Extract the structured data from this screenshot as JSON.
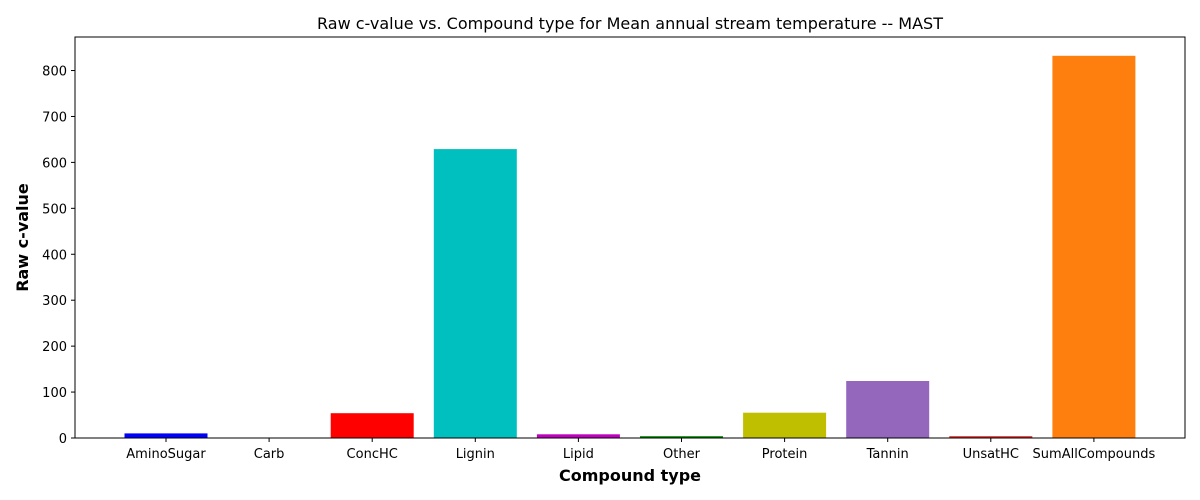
{
  "chart_data": {
    "type": "bar",
    "title": "Raw c-value vs. Compound type for Mean annual stream temperature -- MAST",
    "xlabel": "Compound type",
    "ylabel": "Raw c-value",
    "categories": [
      "AminoSugar",
      "Carb",
      "ConcHC",
      "Lignin",
      "Lipid",
      "Other",
      "Protein",
      "Tannin",
      "UnsatHC",
      "SumAllCompounds"
    ],
    "values": [
      10,
      0,
      54,
      629,
      8,
      4,
      55,
      124,
      4,
      832
    ],
    "colors": [
      "#0000ff",
      "#0000ff",
      "#ff0000",
      "#00bfbf",
      "#bf00bf",
      "#008000",
      "#bfbf00",
      "#9467bd",
      "#d62728",
      "#ff7f0e"
    ],
    "yticks": [
      0,
      100,
      200,
      300,
      400,
      500,
      600,
      700,
      800
    ],
    "ylim": [
      0,
      873
    ],
    "grid": false
  }
}
